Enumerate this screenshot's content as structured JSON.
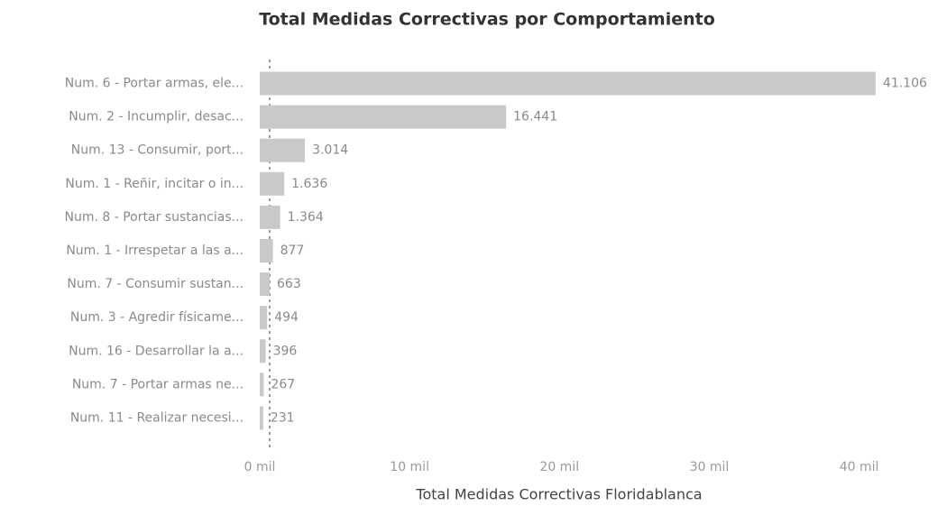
{
  "chart_data": {
    "type": "bar",
    "orientation": "horizontal",
    "title": "Total Medidas Correctivas por Comportamiento",
    "x_label": "Total Medidas Correctivas Floridablanca",
    "categories": [
      "Num. 6 - Portar armas, ele...",
      "Num. 2 - Incumplir, desac...",
      "Num. 13 - Consumir, port...",
      "Num. 1 - Reñir, incitar o in...",
      "Num. 8 - Portar sustancias...",
      "Num. 1 - Irrespetar a las a...",
      "Num. 7 - Consumir sustan...",
      "Num. 3 - Agredir físicame...",
      "Num. 16 - Desarrollar la a...",
      "Num. 7 - Portar armas ne...",
      "Num. 11 - Realizar necesi..."
    ],
    "values": [
      41106,
      16441,
      3014,
      1636,
      1364,
      877,
      663,
      494,
      396,
      267,
      231
    ],
    "value_labels": [
      "41.106",
      "16.441",
      "3.014",
      "1.636",
      "1.364",
      "877",
      "663",
      "494",
      "396",
      "267",
      "231"
    ],
    "color": "#c9c9c9",
    "xlim": [
      0,
      44000
    ],
    "xticks": [
      {
        "value": 0,
        "label": "0 mil"
      },
      {
        "value": 10000,
        "label": "10 mil"
      },
      {
        "value": 20000,
        "label": "20 mil"
      },
      {
        "value": 30000,
        "label": "30 mil"
      },
      {
        "value": 40000,
        "label": "40 mil"
      }
    ],
    "grid": false
  }
}
